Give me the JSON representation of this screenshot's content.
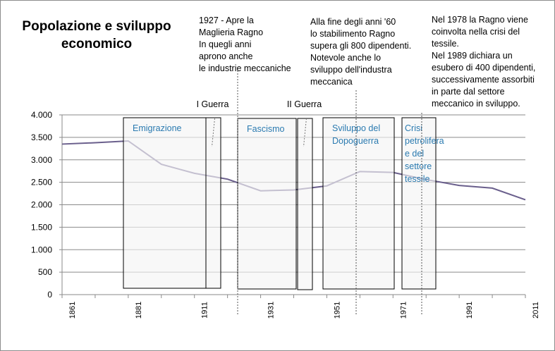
{
  "chart_data": {
    "type": "line",
    "title": [
      "Popolazione  e sviluppo",
      "economico"
    ],
    "categories": [
      "1861",
      null,
      "1881",
      null,
      "1911",
      null,
      "1931",
      null,
      "1951",
      null,
      "1971",
      null,
      "1991",
      null,
      "2011"
    ],
    "series": [
      {
        "name": "Popolazione",
        "color": "#6a5f8c",
        "values": [
          3350,
          3380,
          3420,
          2900,
          2700,
          2570,
          2310,
          2330,
          2420,
          2740,
          2720,
          2560,
          2430,
          2370,
          2110
        ]
      }
    ],
    "ylim": [
      0,
      4000
    ],
    "yticks": [
      0,
      500,
      {
        "value": 1000,
        "label": "1.000"
      },
      {
        "value": 1500,
        "label": "1.500"
      },
      {
        "value": 2000,
        "label": "2.000"
      },
      {
        "value": 2500,
        "label": "2.500"
      },
      {
        "value": 3000,
        "label": "3.000"
      },
      {
        "value": 3500,
        "label": "3.500"
      },
      {
        "value": 4000,
        "label": "4.000"
      }
    ],
    "grid": true,
    "periods": [
      {
        "lines": [
          "Emigrazione"
        ]
      },
      {
        "label": "I Guerra"
      },
      {
        "lines": [
          "Fascismo"
        ]
      },
      {
        "label": "II Guerra"
      },
      {
        "lines": [
          "Sviluppo del",
          "Dopoguerra"
        ]
      },
      {
        "lines": [
          "Crisi",
          "petrolifera",
          "e del",
          "settore",
          "tessile"
        ]
      }
    ],
    "notes": [
      {
        "lines": [
          "1927 - Apre la",
          "Maglieria Ragno",
          "In quegli anni",
          "aprono anche",
          "le industrie meccaniche"
        ]
      },
      {
        "lines": [
          "Alla fine degli anni '60",
          "lo stabilimento Ragno",
          "supera gli 800 dipendenti.",
          "Notevole anche lo",
          "sviluppo  dell'industra",
          "meccanica"
        ]
      },
      {
        "lines": [
          "Nel 1978 la Ragno viene",
          "coinvolta nella  crisi del",
          "tessile.",
          "Nel 1989 dichiara un",
          "esubero di 400 dipendenti,",
          "successivamente assorbiti",
          "in parte dal settore",
          "meccanico in sviluppo."
        ]
      }
    ]
  }
}
